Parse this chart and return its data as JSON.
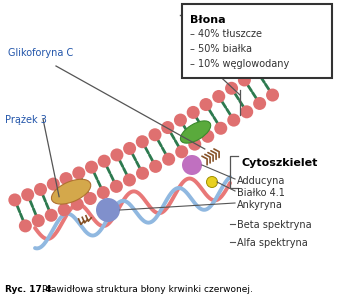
{
  "caption_bold": "Ryc. 17.4",
  "caption_text": "   Prawidłowa struktura błony krwinki czerwonej.",
  "legend_title": "Błona",
  "legend_items": [
    "– 40% tłuszcze",
    "– 50% białka",
    "– 10% węglowodany"
  ],
  "labels": {
    "glikoforyna": "Glikoforyna C",
    "prazek": "Prążek 3",
    "cytoszkielet": "Cytoszkielet",
    "adducyna": "Adducyna",
    "bialko": "Białko 4.1",
    "ankyryna": "Ankyryna",
    "beta": "Beta spektryna",
    "alfa": "Alfa spektryna"
  },
  "colors": {
    "background": "#ffffff",
    "membrane_head": "#df7070",
    "membrane_tail": "#2d7a4f",
    "glikoforyna_body": "#5aaa3c",
    "prazek_body": "#d4a84b",
    "ankyryna_sphere": "#8090cc",
    "adducyna_sphere": "#c070c0",
    "small_sphere": "#e8d020",
    "alpha_spectryna": "#e87878",
    "beta_spectryna": "#90b8e0",
    "label_color": "#2255aa",
    "legend_border": "#333333",
    "caption_color": "#000000",
    "line_color": "#555555",
    "sugar_color": "#7a4010"
  },
  "figsize": [
    3.37,
    3.04
  ],
  "dpi": 100
}
